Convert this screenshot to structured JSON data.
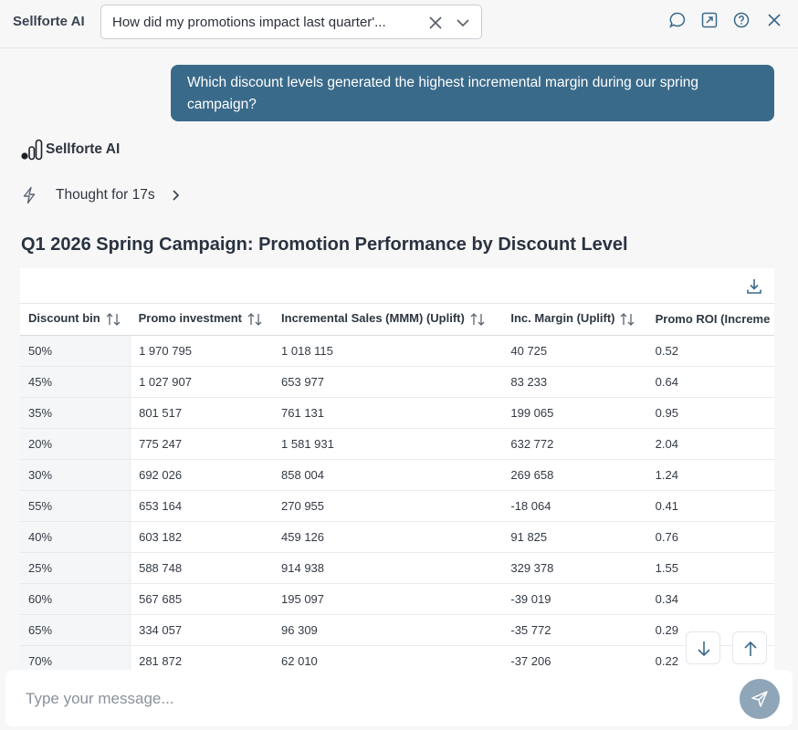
{
  "header": {
    "brand": "Sellforte AI",
    "conversation_title": "How did my promotions impact last quarter'..."
  },
  "chat": {
    "user_message": "Which discount levels generated the highest incremental margin during our spring campaign?",
    "assistant_name": "Sellforte AI",
    "thought_label": "Thought for 17s",
    "result_title": "Q1 2026 Spring Campaign: Promotion Performance by Discount Level"
  },
  "table": {
    "columns": [
      "Discount bin",
      "Promo investment",
      "Incremental Sales (MMM) (Uplift)",
      "Inc. Margin (Uplift)",
      "Promo ROI (Increme"
    ],
    "rows": [
      [
        "50%",
        "1 970 795",
        "1 018 115",
        "40 725",
        "0.52"
      ],
      [
        "45%",
        "1 027 907",
        "653 977",
        "83 233",
        "0.64"
      ],
      [
        "35%",
        "801 517",
        "761 131",
        "199 065",
        "0.95"
      ],
      [
        "20%",
        "775 247",
        "1 581 931",
        "632 772",
        "2.04"
      ],
      [
        "30%",
        "692 026",
        "858 004",
        "269 658",
        "1.24"
      ],
      [
        "55%",
        "653 164",
        "270 955",
        "-18 064",
        "0.41"
      ],
      [
        "40%",
        "603 182",
        "459 126",
        "91 825",
        "0.76"
      ],
      [
        "25%",
        "588 748",
        "914 938",
        "329 378",
        "1.55"
      ],
      [
        "60%",
        "567 685",
        "195 097",
        "-39 019",
        "0.34"
      ],
      [
        "65%",
        "334 057",
        "96 309",
        "-35 772",
        "0.29"
      ],
      [
        "70%",
        "281 872",
        "62 010",
        "-37 206",
        "0.22"
      ]
    ]
  },
  "composer": {
    "placeholder": "Type your message..."
  },
  "colors": {
    "user_bubble": "#3a6a8a",
    "send_button": "#8fa6b8"
  }
}
